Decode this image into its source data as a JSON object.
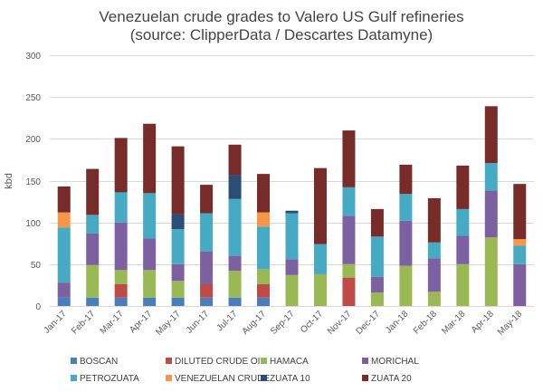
{
  "chart_data": {
    "type": "bar",
    "stacked": true,
    "title": "Venezuelan crude grades to Valero US Gulf refineries",
    "subtitle": "(source: ClipperData / Descartes Datamyne)",
    "xlabel": "",
    "ylabel": "kbd",
    "ylim": [
      0,
      300
    ],
    "yticks": [
      0,
      50,
      100,
      150,
      200,
      250,
      300
    ],
    "grid": true,
    "legend_position": "bottom",
    "categories": [
      "Jan-17",
      "Feb-17",
      "Mar-17",
      "Apr-17",
      "May-17",
      "Jun-17",
      "Jul-17",
      "Aug-17",
      "Sep-17",
      "Oct-17",
      "Nov-17",
      "Dec-17",
      "Jan-18",
      "Feb-18",
      "Mar-18",
      "Apr-18",
      "May-18"
    ],
    "series": [
      {
        "name": "BOSCAN",
        "color": "#4a7ebb",
        "values": [
          10,
          10,
          10,
          10,
          10,
          10,
          10,
          10,
          0,
          0,
          0,
          0,
          0,
          0,
          0,
          0,
          0
        ]
      },
      {
        "name": "DILUTED CRUDE OIL",
        "color": "#be4b48",
        "values": [
          0,
          0,
          16,
          0,
          0,
          16,
          0,
          16,
          0,
          0,
          34,
          0,
          0,
          0,
          0,
          0,
          0
        ]
      },
      {
        "name": "HAMACA",
        "color": "#98b954",
        "values": [
          0,
          39,
          17,
          33,
          20,
          0,
          32,
          18,
          37,
          38,
          16,
          16,
          48,
          17,
          50,
          82,
          0
        ]
      },
      {
        "name": "MORICHAL",
        "color": "#7d60a0",
        "values": [
          18,
          38,
          57,
          38,
          20,
          39,
          18,
          0,
          19,
          0,
          58,
          19,
          54,
          40,
          34,
          56,
          50
        ]
      },
      {
        "name": "PETROZUATA",
        "color": "#46aac5",
        "values": [
          66,
          22,
          36,
          54,
          42,
          46,
          68,
          51,
          55,
          36,
          34,
          48,
          32,
          19,
          32,
          33,
          22
        ]
      },
      {
        "name": "VENEZUELAN CRUDE",
        "color": "#f79646",
        "values": [
          18,
          0,
          0,
          0,
          0,
          0,
          0,
          17,
          0,
          0,
          0,
          0,
          0,
          0,
          0,
          0,
          8
        ]
      },
      {
        "name": "ZUATA 10",
        "color": "#2c4d75",
        "values": [
          0,
          0,
          0,
          0,
          18,
          0,
          29,
          0,
          3,
          0,
          0,
          0,
          0,
          0,
          0,
          0,
          0
        ]
      },
      {
        "name": "ZUATA 20",
        "color": "#772c2a",
        "values": [
          31,
          55,
          65,
          83,
          81,
          34,
          36,
          46,
          0,
          91,
          68,
          33,
          35,
          53,
          52,
          68,
          66
        ]
      }
    ]
  }
}
